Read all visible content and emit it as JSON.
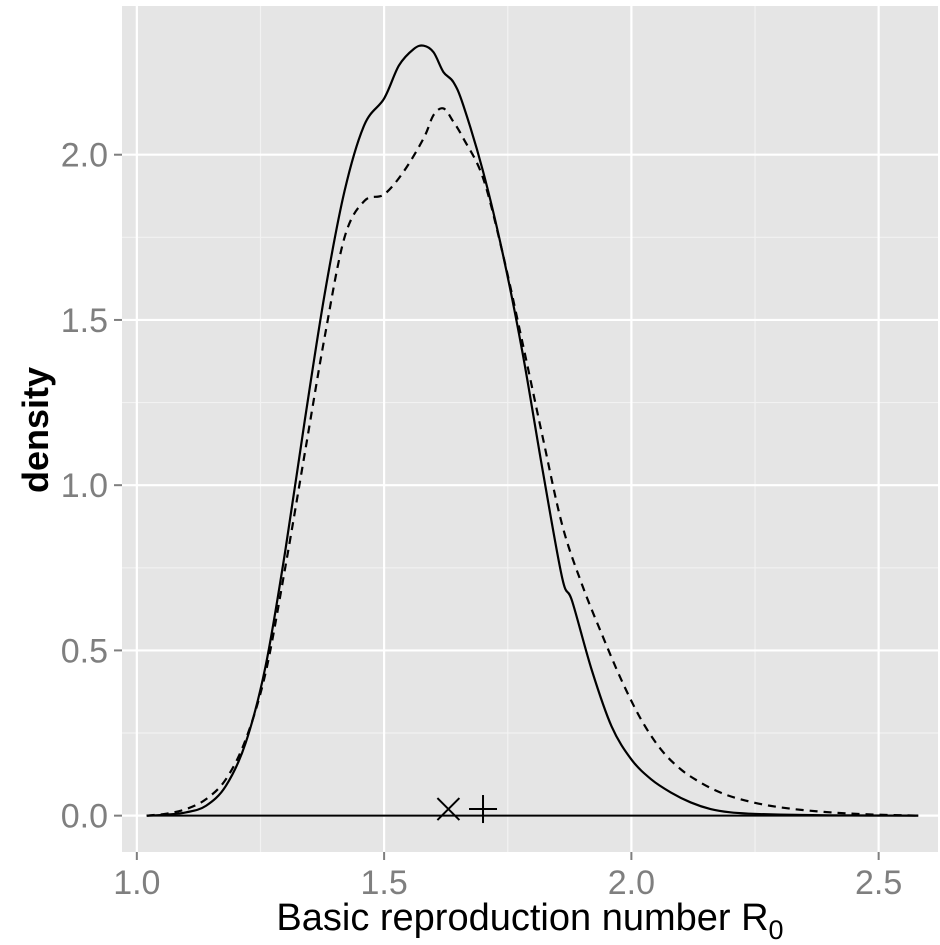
{
  "chart_data": {
    "type": "line",
    "xlabel": "Basic reproduction number R",
    "xlabel_subscript": "0",
    "ylabel": "density",
    "xlim": [
      0.97,
      2.62
    ],
    "ylim": [
      -0.11,
      2.45
    ],
    "x_ticks": [
      {
        "value": 1.0,
        "label": "1.0"
      },
      {
        "value": 1.5,
        "label": "1.5"
      },
      {
        "value": 2.0,
        "label": "2.0"
      },
      {
        "value": 2.5,
        "label": "2.5"
      }
    ],
    "y_ticks": [
      {
        "value": 0.0,
        "label": "0.0"
      },
      {
        "value": 0.5,
        "label": "0.5"
      },
      {
        "value": 1.0,
        "label": "1.0"
      },
      {
        "value": 1.5,
        "label": "1.5"
      },
      {
        "value": 2.0,
        "label": "2.0"
      }
    ],
    "grid": true,
    "legend": "none",
    "series": [
      {
        "line_style": "solid",
        "x": [
          1.02,
          1.06,
          1.1,
          1.14,
          1.18,
          1.22,
          1.26,
          1.3,
          1.34,
          1.38,
          1.42,
          1.46,
          1.5,
          1.53,
          1.56,
          1.58,
          1.6,
          1.62,
          1.64,
          1.66,
          1.7,
          1.74,
          1.78,
          1.82,
          1.86,
          1.88,
          1.92,
          1.96,
          2.0,
          2.04,
          2.08,
          2.12,
          2.16,
          2.2,
          2.24,
          2.3,
          2.4,
          2.58
        ],
        "y": [
          0.0,
          0.003,
          0.01,
          0.03,
          0.09,
          0.22,
          0.45,
          0.8,
          1.2,
          1.58,
          1.89,
          2.09,
          2.17,
          2.27,
          2.32,
          2.33,
          2.31,
          2.25,
          2.22,
          2.15,
          1.95,
          1.7,
          1.4,
          1.05,
          0.72,
          0.65,
          0.44,
          0.27,
          0.17,
          0.11,
          0.07,
          0.04,
          0.02,
          0.01,
          0.006,
          0.003,
          0.001,
          0.0
        ]
      },
      {
        "line_style": "dashed",
        "x": [
          1.02,
          1.06,
          1.1,
          1.14,
          1.18,
          1.22,
          1.26,
          1.3,
          1.34,
          1.38,
          1.42,
          1.46,
          1.5,
          1.54,
          1.58,
          1.6,
          1.62,
          1.64,
          1.66,
          1.7,
          1.74,
          1.78,
          1.82,
          1.86,
          1.9,
          1.94,
          1.98,
          2.02,
          2.06,
          2.1,
          2.14,
          2.18,
          2.22,
          2.28,
          2.36,
          2.46,
          2.58
        ],
        "y": [
          0.0,
          0.006,
          0.02,
          0.05,
          0.11,
          0.23,
          0.43,
          0.75,
          1.1,
          1.45,
          1.75,
          1.86,
          1.88,
          1.95,
          2.05,
          2.12,
          2.14,
          2.1,
          2.05,
          1.93,
          1.7,
          1.43,
          1.15,
          0.88,
          0.7,
          0.55,
          0.41,
          0.29,
          0.2,
          0.14,
          0.1,
          0.07,
          0.05,
          0.03,
          0.015,
          0.005,
          0.0
        ]
      }
    ],
    "baseline": {
      "x": [
        1.02,
        2.58
      ],
      "y": [
        0.0,
        0.0
      ]
    },
    "markers": [
      {
        "symbol": "x",
        "x": 1.63,
        "y": 0.02
      },
      {
        "symbol": "+",
        "x": 1.7,
        "y": 0.02
      }
    ]
  }
}
